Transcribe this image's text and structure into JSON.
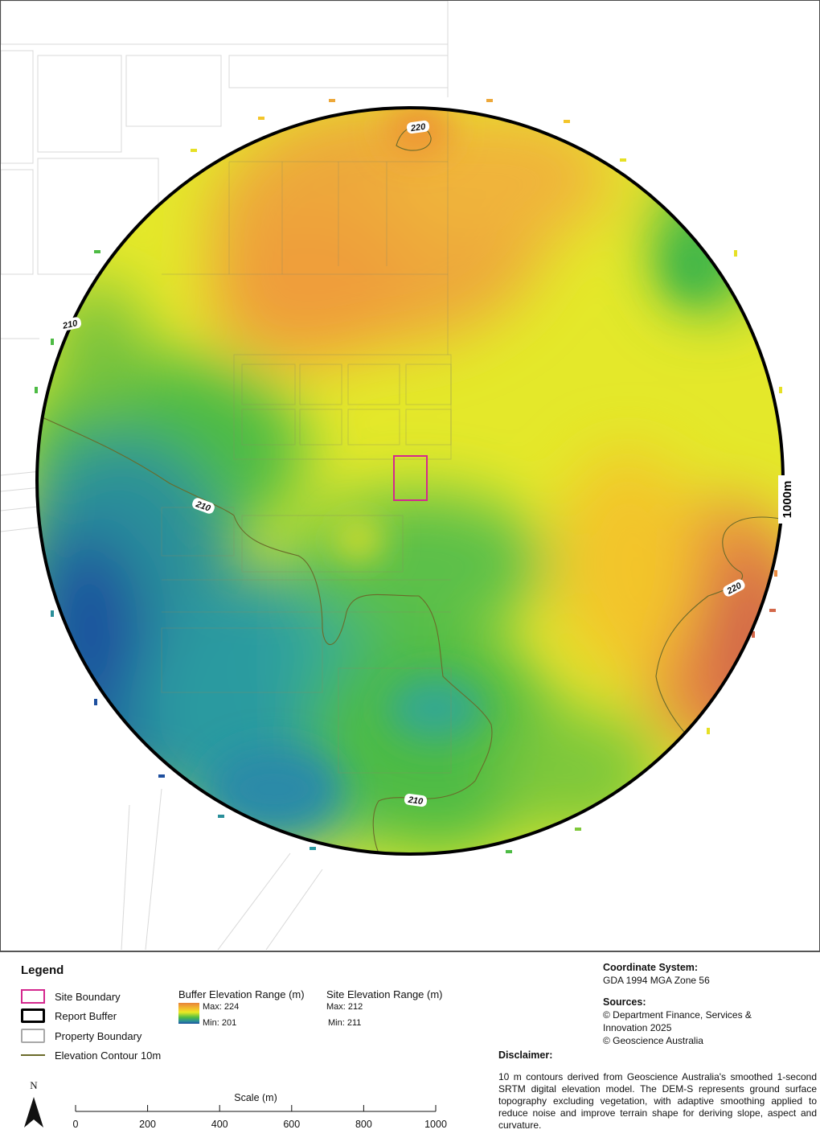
{
  "map": {
    "buffer_label": "1000m",
    "contour_labels": [
      "220",
      "210",
      "210",
      "220",
      "210"
    ],
    "colors": {
      "max": "#e8823a",
      "high": "#f3c52a",
      "mid_high": "#e8ea24",
      "mid": "#4dbb44",
      "low_mid": "#2a8f9a",
      "min": "#1e4f9e",
      "hot": "#d3684a",
      "site_boundary": "#d4288e",
      "report_buffer": "#000000",
      "property_boundary": "#a8a8a8",
      "contour": "#6a6a2a"
    }
  },
  "legend": {
    "title": "Legend",
    "items": [
      {
        "label": "Site Boundary",
        "symbol": "site-boundary-swatch"
      },
      {
        "label": "Report Buffer",
        "symbol": "report-buffer-swatch"
      },
      {
        "label": "Property Boundary",
        "symbol": "property-boundary-swatch"
      },
      {
        "label": "Elevation Contour 10m",
        "symbol": "contour-line-swatch"
      }
    ],
    "buffer_range": {
      "title": "Buffer Elevation Range (m)",
      "max": "Max: 224",
      "min": "Min: 201"
    },
    "site_range": {
      "title": "Site Elevation Range (m)",
      "max": "Max: 212",
      "min": "Min: 211"
    }
  },
  "info": {
    "coord_heading": "Coordinate System:",
    "coord_value": "GDA 1994 MGA Zone 56",
    "sources_heading": "Sources:",
    "sources": [
      "© Department Finance, Services &",
      "Innovation 2025",
      "© Geoscience Australia"
    ],
    "disclaimer_heading": "Disclaimer:",
    "disclaimer_text": "10 m contours derived from Geoscience Australia's smoothed 1-second SRTM digital elevation model. The DEM-S represents ground surface topography excluding vegetation, with adaptive smoothing applied to reduce noise and improve terrain shape for deriving slope, aspect and curvature."
  },
  "scale": {
    "title": "Scale (m)",
    "ticks": [
      "0",
      "200",
      "400",
      "600",
      "800",
      "1000"
    ]
  },
  "north": {
    "label": "N"
  }
}
